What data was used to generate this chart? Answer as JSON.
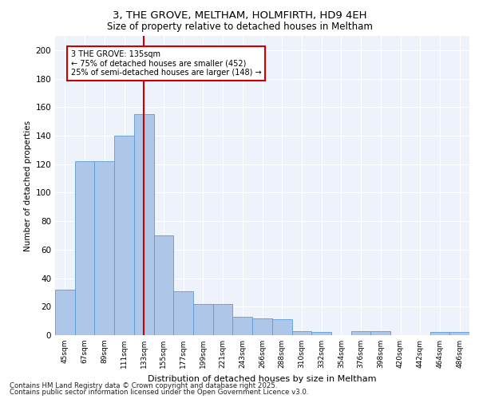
{
  "title": "3, THE GROVE, MELTHAM, HOLMFIRTH, HD9 4EH",
  "subtitle": "Size of property relative to detached houses in Meltham",
  "xlabel": "Distribution of detached houses by size in Meltham",
  "ylabel": "Number of detached properties",
  "bar_color": "#aec6e8",
  "bar_edge_color": "#5b9bd5",
  "background_color": "#eef2fb",
  "grid_color": "#ffffff",
  "categories": [
    "45sqm",
    "67sqm",
    "89sqm",
    "111sqm",
    "133sqm",
    "155sqm",
    "177sqm",
    "199sqm",
    "221sqm",
    "243sqm",
    "266sqm",
    "288sqm",
    "310sqm",
    "332sqm",
    "354sqm",
    "376sqm",
    "398sqm",
    "420sqm",
    "442sqm",
    "464sqm",
    "486sqm"
  ],
  "values": [
    32,
    122,
    122,
    140,
    155,
    70,
    31,
    22,
    22,
    13,
    12,
    11,
    3,
    2,
    0,
    3,
    3,
    0,
    0,
    2,
    2
  ],
  "vline_x": 4,
  "vline_color": "#cc0000",
  "annotation_title": "3 THE GROVE: 135sqm",
  "annotation_line1": "← 75% of detached houses are smaller (452)",
  "annotation_line2": "25% of semi-detached houses are larger (148) →",
  "annotation_box_color": "#cc0000",
  "ylim": [
    0,
    210
  ],
  "yticks": [
    0,
    20,
    40,
    60,
    80,
    100,
    120,
    140,
    160,
    180,
    200
  ],
  "footnote1": "Contains HM Land Registry data © Crown copyright and database right 2025.",
  "footnote2": "Contains public sector information licensed under the Open Government Licence v3.0.",
  "figsize": [
    6.0,
    5.0
  ],
  "dpi": 100
}
